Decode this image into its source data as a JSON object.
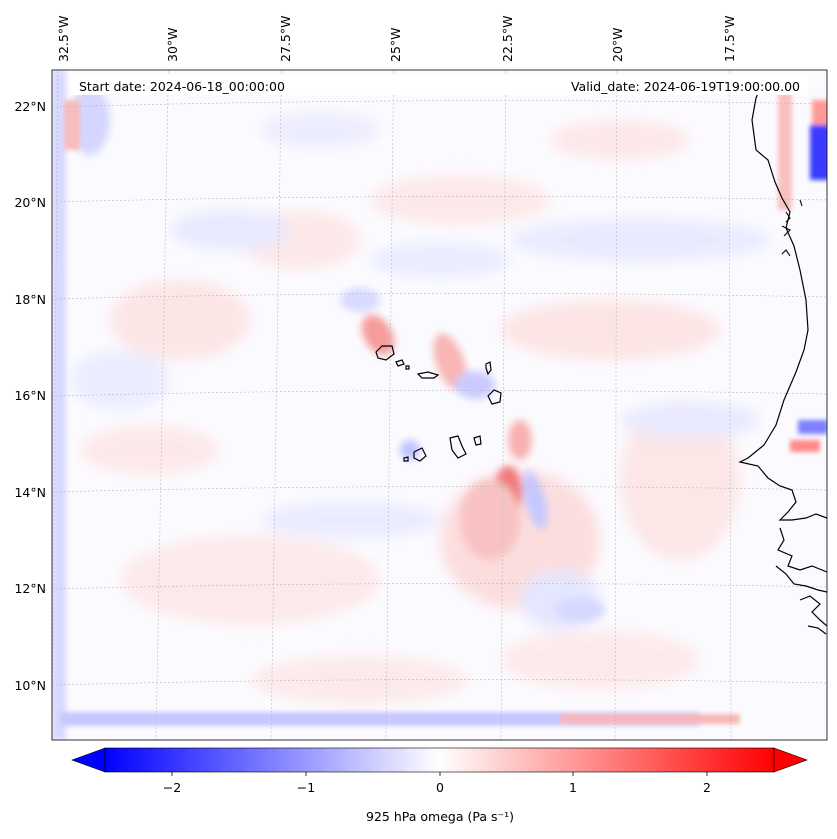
{
  "map": {
    "start_label": "Start date: 2024-06-18_00:00:00",
    "valid_label": "Valid_date: 2024-06-19T19:00:00.00",
    "lon_ticks": [
      "32.5°W",
      "30°W",
      "27.5°W",
      "25°W",
      "22.5°W",
      "20°W",
      "17.5°W"
    ],
    "lat_ticks": [
      "22°N",
      "20°N",
      "18°N",
      "16°N",
      "14°N",
      "12°N",
      "10°N"
    ],
    "gridlines": true,
    "projection": "conic",
    "coastline_color": "#000000"
  },
  "colorbar": {
    "label": "925 hPa omega (Pa s⁻¹)",
    "ticks": [
      "−2",
      "−1",
      "0",
      "1",
      "2"
    ],
    "range": [
      -2.5,
      2.5
    ],
    "extend": "both",
    "cmap": "bwr",
    "colors": {
      "min": "#0000ff",
      "mid": "#ffffff",
      "max": "#ff0000"
    }
  }
}
